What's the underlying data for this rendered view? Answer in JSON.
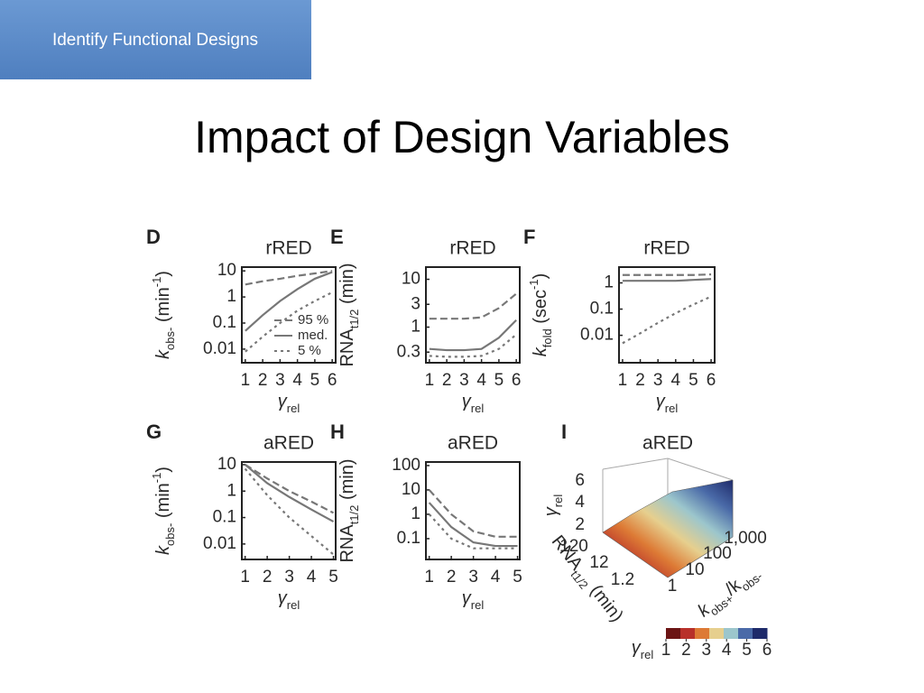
{
  "header": {
    "tab": "Identify Functional Designs",
    "title": "Impact of Design Variables"
  },
  "chart_data": [
    {
      "type": "line",
      "panel": "D",
      "title": "rRED",
      "ylabel": [
        {
          "t": "k"
        },
        {
          "t": "obs-",
          "pos": "sub"
        },
        {
          "t": " (min"
        },
        {
          "t": "-1",
          "pos": "sup"
        },
        {
          "t": ")"
        }
      ],
      "xlabel": [
        {
          "t": "γ"
        },
        {
          "t": "rel",
          "pos": "sub"
        }
      ],
      "x": [
        1,
        2,
        3,
        4,
        5,
        6
      ],
      "xlim": [
        0.8,
        6.2
      ],
      "xticks": [
        1,
        2,
        3,
        4,
        5,
        6
      ],
      "ylog": true,
      "ylim": [
        0.003,
        14
      ],
      "yticks": [
        0.01,
        0.1,
        1,
        10
      ],
      "legend": "lower right",
      "series": [
        {
          "name": "95 %",
          "color": "#777777",
          "style": "dashed",
          "values": [
            3,
            4,
            5,
            6.5,
            8,
            10
          ]
        },
        {
          "name": "med.",
          "color": "#777777",
          "style": "solid",
          "values": [
            0.05,
            0.2,
            0.7,
            2,
            5,
            9
          ]
        },
        {
          "name": "5 %",
          "color": "#777777",
          "style": "dotted",
          "values": [
            0.008,
            0.03,
            0.1,
            0.3,
            0.7,
            1.5
          ]
        }
      ]
    },
    {
      "type": "line",
      "panel": "E",
      "title": "rRED",
      "ylabel": [
        {
          "t": "RNA"
        },
        {
          "t": "t1/2",
          "pos": "sub"
        },
        {
          "t": " (min)"
        }
      ],
      "xlabel": [
        {
          "t": "γ"
        },
        {
          "t": "rel",
          "pos": "sub"
        }
      ],
      "x": [
        1,
        2,
        3,
        4,
        5,
        6
      ],
      "xlim": [
        0.8,
        6.2
      ],
      "xticks": [
        1,
        2,
        3,
        4,
        5,
        6
      ],
      "ylog": true,
      "ylim": [
        0.18,
        18
      ],
      "yticks": [
        0.3,
        1,
        3,
        10
      ],
      "series": [
        {
          "color": "#777777",
          "style": "dashed",
          "values": [
            1.5,
            1.5,
            1.5,
            1.6,
            2.5,
            5
          ]
        },
        {
          "color": "#777777",
          "style": "solid",
          "values": [
            0.35,
            0.33,
            0.33,
            0.35,
            0.6,
            1.4
          ]
        },
        {
          "color": "#777777",
          "style": "dotted",
          "values": [
            0.25,
            0.24,
            0.24,
            0.25,
            0.35,
            0.7
          ]
        }
      ]
    },
    {
      "type": "line",
      "panel": "F",
      "title": "rRED",
      "ylabel": [
        {
          "t": "k"
        },
        {
          "t": "fold",
          "pos": "sub"
        },
        {
          "t": " (sec"
        },
        {
          "t": "-1",
          "pos": "sup"
        },
        {
          "t": ")"
        }
      ],
      "xlabel": [
        {
          "t": "γ"
        },
        {
          "t": "rel",
          "pos": "sub"
        }
      ],
      "x": [
        1,
        2,
        3,
        4,
        5,
        6
      ],
      "xlim": [
        0.8,
        6.2
      ],
      "xticks": [
        1,
        2,
        3,
        4,
        5,
        6
      ],
      "ylog": true,
      "ylim": [
        0.0009,
        4
      ],
      "yticks": [
        0.01,
        0.1,
        1
      ],
      "series": [
        {
          "color": "#777777",
          "style": "dashed",
          "values": [
            2,
            2,
            2,
            2,
            2,
            2.1
          ]
        },
        {
          "color": "#777777",
          "style": "solid",
          "values": [
            1.2,
            1.2,
            1.2,
            1.2,
            1.3,
            1.4
          ]
        },
        {
          "color": "#777777",
          "style": "dotted",
          "values": [
            0.005,
            0.012,
            0.03,
            0.07,
            0.15,
            0.3
          ]
        }
      ]
    },
    {
      "type": "line",
      "panel": "G",
      "title": "aRED",
      "ylabel": [
        {
          "t": "k"
        },
        {
          "t": "obs-",
          "pos": "sub"
        },
        {
          "t": " (min"
        },
        {
          "t": "-1",
          "pos": "sup"
        },
        {
          "t": ")"
        }
      ],
      "xlabel": [
        {
          "t": "γ"
        },
        {
          "t": "rel",
          "pos": "sub"
        }
      ],
      "x": [
        1,
        2,
        3,
        4,
        5
      ],
      "xlim": [
        0.85,
        5.1
      ],
      "xticks": [
        1,
        2,
        3,
        4,
        5
      ],
      "ylog": true,
      "ylim": [
        0.0026,
        12.6
      ],
      "yticks": [
        0.01,
        0.1,
        1,
        10
      ],
      "series": [
        {
          "color": "#777777",
          "style": "dashed",
          "values": [
            10,
            3,
            1,
            0.4,
            0.15
          ]
        },
        {
          "color": "#777777",
          "style": "solid",
          "values": [
            10,
            2,
            0.6,
            0.2,
            0.07
          ]
        },
        {
          "color": "#777777",
          "style": "dotted",
          "values": [
            7,
            0.7,
            0.1,
            0.02,
            0.004
          ]
        }
      ]
    },
    {
      "type": "line",
      "panel": "H",
      "title": "aRED",
      "ylabel": [
        {
          "t": "RNA"
        },
        {
          "t": "t1/2",
          "pos": "sub"
        },
        {
          "t": " (min)"
        }
      ],
      "xlabel": [
        {
          "t": "γ"
        },
        {
          "t": "rel",
          "pos": "sub"
        }
      ],
      "x": [
        1,
        2,
        3,
        4,
        5
      ],
      "xlim": [
        0.85,
        5.1
      ],
      "xticks": [
        1,
        2,
        3,
        4,
        5
      ],
      "ylog": true,
      "ylim": [
        0.014,
        140
      ],
      "yticks": [
        0.1,
        1,
        10,
        100
      ],
      "series": [
        {
          "color": "#777777",
          "style": "dashed",
          "values": [
            10,
            1,
            0.2,
            0.12,
            0.12
          ]
        },
        {
          "color": "#777777",
          "style": "solid",
          "values": [
            3,
            0.3,
            0.07,
            0.05,
            0.05
          ]
        },
        {
          "color": "#777777",
          "style": "dotted",
          "values": [
            1,
            0.1,
            0.04,
            0.04,
            0.04
          ]
        }
      ]
    },
    {
      "type": "surface",
      "panel": "I",
      "title": "aRED",
      "zlabel": [
        {
          "t": "γ"
        },
        {
          "t": "rel",
          "pos": "sub"
        }
      ],
      "zticks": [
        2,
        4,
        6
      ],
      "xlabel": [
        {
          "t": "RNA"
        },
        {
          "t": "t1/2",
          "pos": "sub"
        },
        {
          "t": " (min)"
        }
      ],
      "xticks": [
        120,
        12,
        1.2
      ],
      "ylabel": [
        {
          "t": "k"
        },
        {
          "t": "obs+",
          "pos": "sub"
        },
        {
          "t": "/k"
        },
        {
          "t": "obs-",
          "pos": "sub"
        }
      ],
      "yticks": [
        1,
        10,
        100,
        {
          "value": 1000,
          "label": "1,000"
        }
      ],
      "colorbar_label": [
        {
          "t": "γ"
        },
        {
          "t": "rel",
          "pos": "sub"
        }
      ],
      "colorbar_ticks": [
        1,
        2,
        3,
        4,
        5,
        6
      ],
      "colormap": [
        "#6b1414",
        "#b8302a",
        "#dd7a35",
        "#e6cf8e",
        "#9cc6cc",
        "#4a6aa8",
        "#1e2a6a"
      ]
    }
  ]
}
